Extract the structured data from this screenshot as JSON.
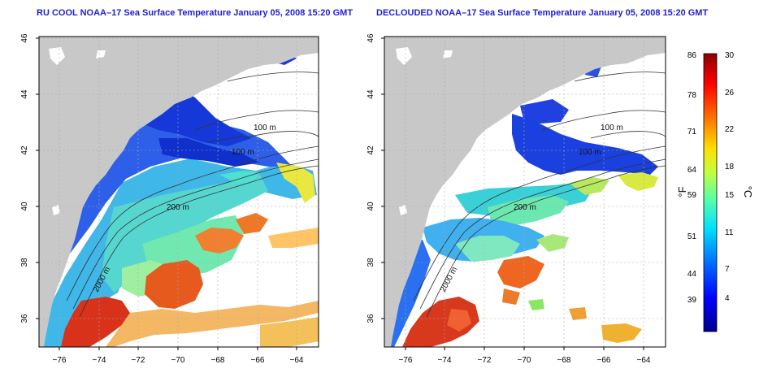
{
  "panels": [
    {
      "title": "RU COOL NOAA–17 Sea Surface Temperature January 05, 2008 15:20 GMT",
      "contour_labels": [
        "100 m",
        "100 m",
        "200 m",
        "2000 m"
      ]
    },
    {
      "title": "DECLOUDED NOAA–17 Sea Surface Temperature January 05, 2008 15:20 GMT",
      "contour_labels": [
        "100 m",
        "100 m",
        "200 m",
        "2000 m"
      ]
    }
  ],
  "axes": {
    "lon_ticks": [
      "−76",
      "−74",
      "−72",
      "−70",
      "−68",
      "−66",
      "−64"
    ],
    "lat_ticks": [
      "36",
      "38",
      "40",
      "42",
      "44",
      "46"
    ]
  },
  "colorbar": {
    "unit_f": "°F",
    "unit_c": "°C",
    "f_ticks": [
      "86",
      "78",
      "71",
      "64",
      "59",
      "51",
      "44",
      "39"
    ],
    "c_ticks": [
      "30",
      "26",
      "22",
      "18",
      "15",
      "11",
      "7",
      "4"
    ],
    "colors": [
      "#00008f",
      "#0000ff",
      "#0070ff",
      "#00dfff",
      "#50ffaf",
      "#bfff40",
      "#ffdf00",
      "#ff7000",
      "#ff0000",
      "#8f0000"
    ]
  },
  "colors": {
    "land": "#c8c8c8",
    "title": "#1f1fd0"
  }
}
